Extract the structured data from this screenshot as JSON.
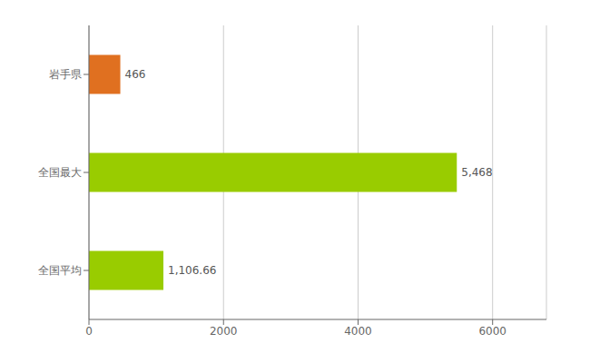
{
  "chart_data": {
    "type": "bar",
    "orientation": "horizontal",
    "categories": [
      "全国平均",
      "全国最大",
      "岩手県"
    ],
    "values": [
      1106.66,
      5468,
      466
    ],
    "value_labels": [
      "1,106.66",
      "5,468",
      "466"
    ],
    "colors": [
      "#99cc00",
      "#99cc00",
      "#e07020"
    ],
    "xlim": [
      0,
      6800
    ],
    "xticks": [
      0,
      2000,
      4000,
      6000
    ],
    "grid": true,
    "data_labels": true
  }
}
